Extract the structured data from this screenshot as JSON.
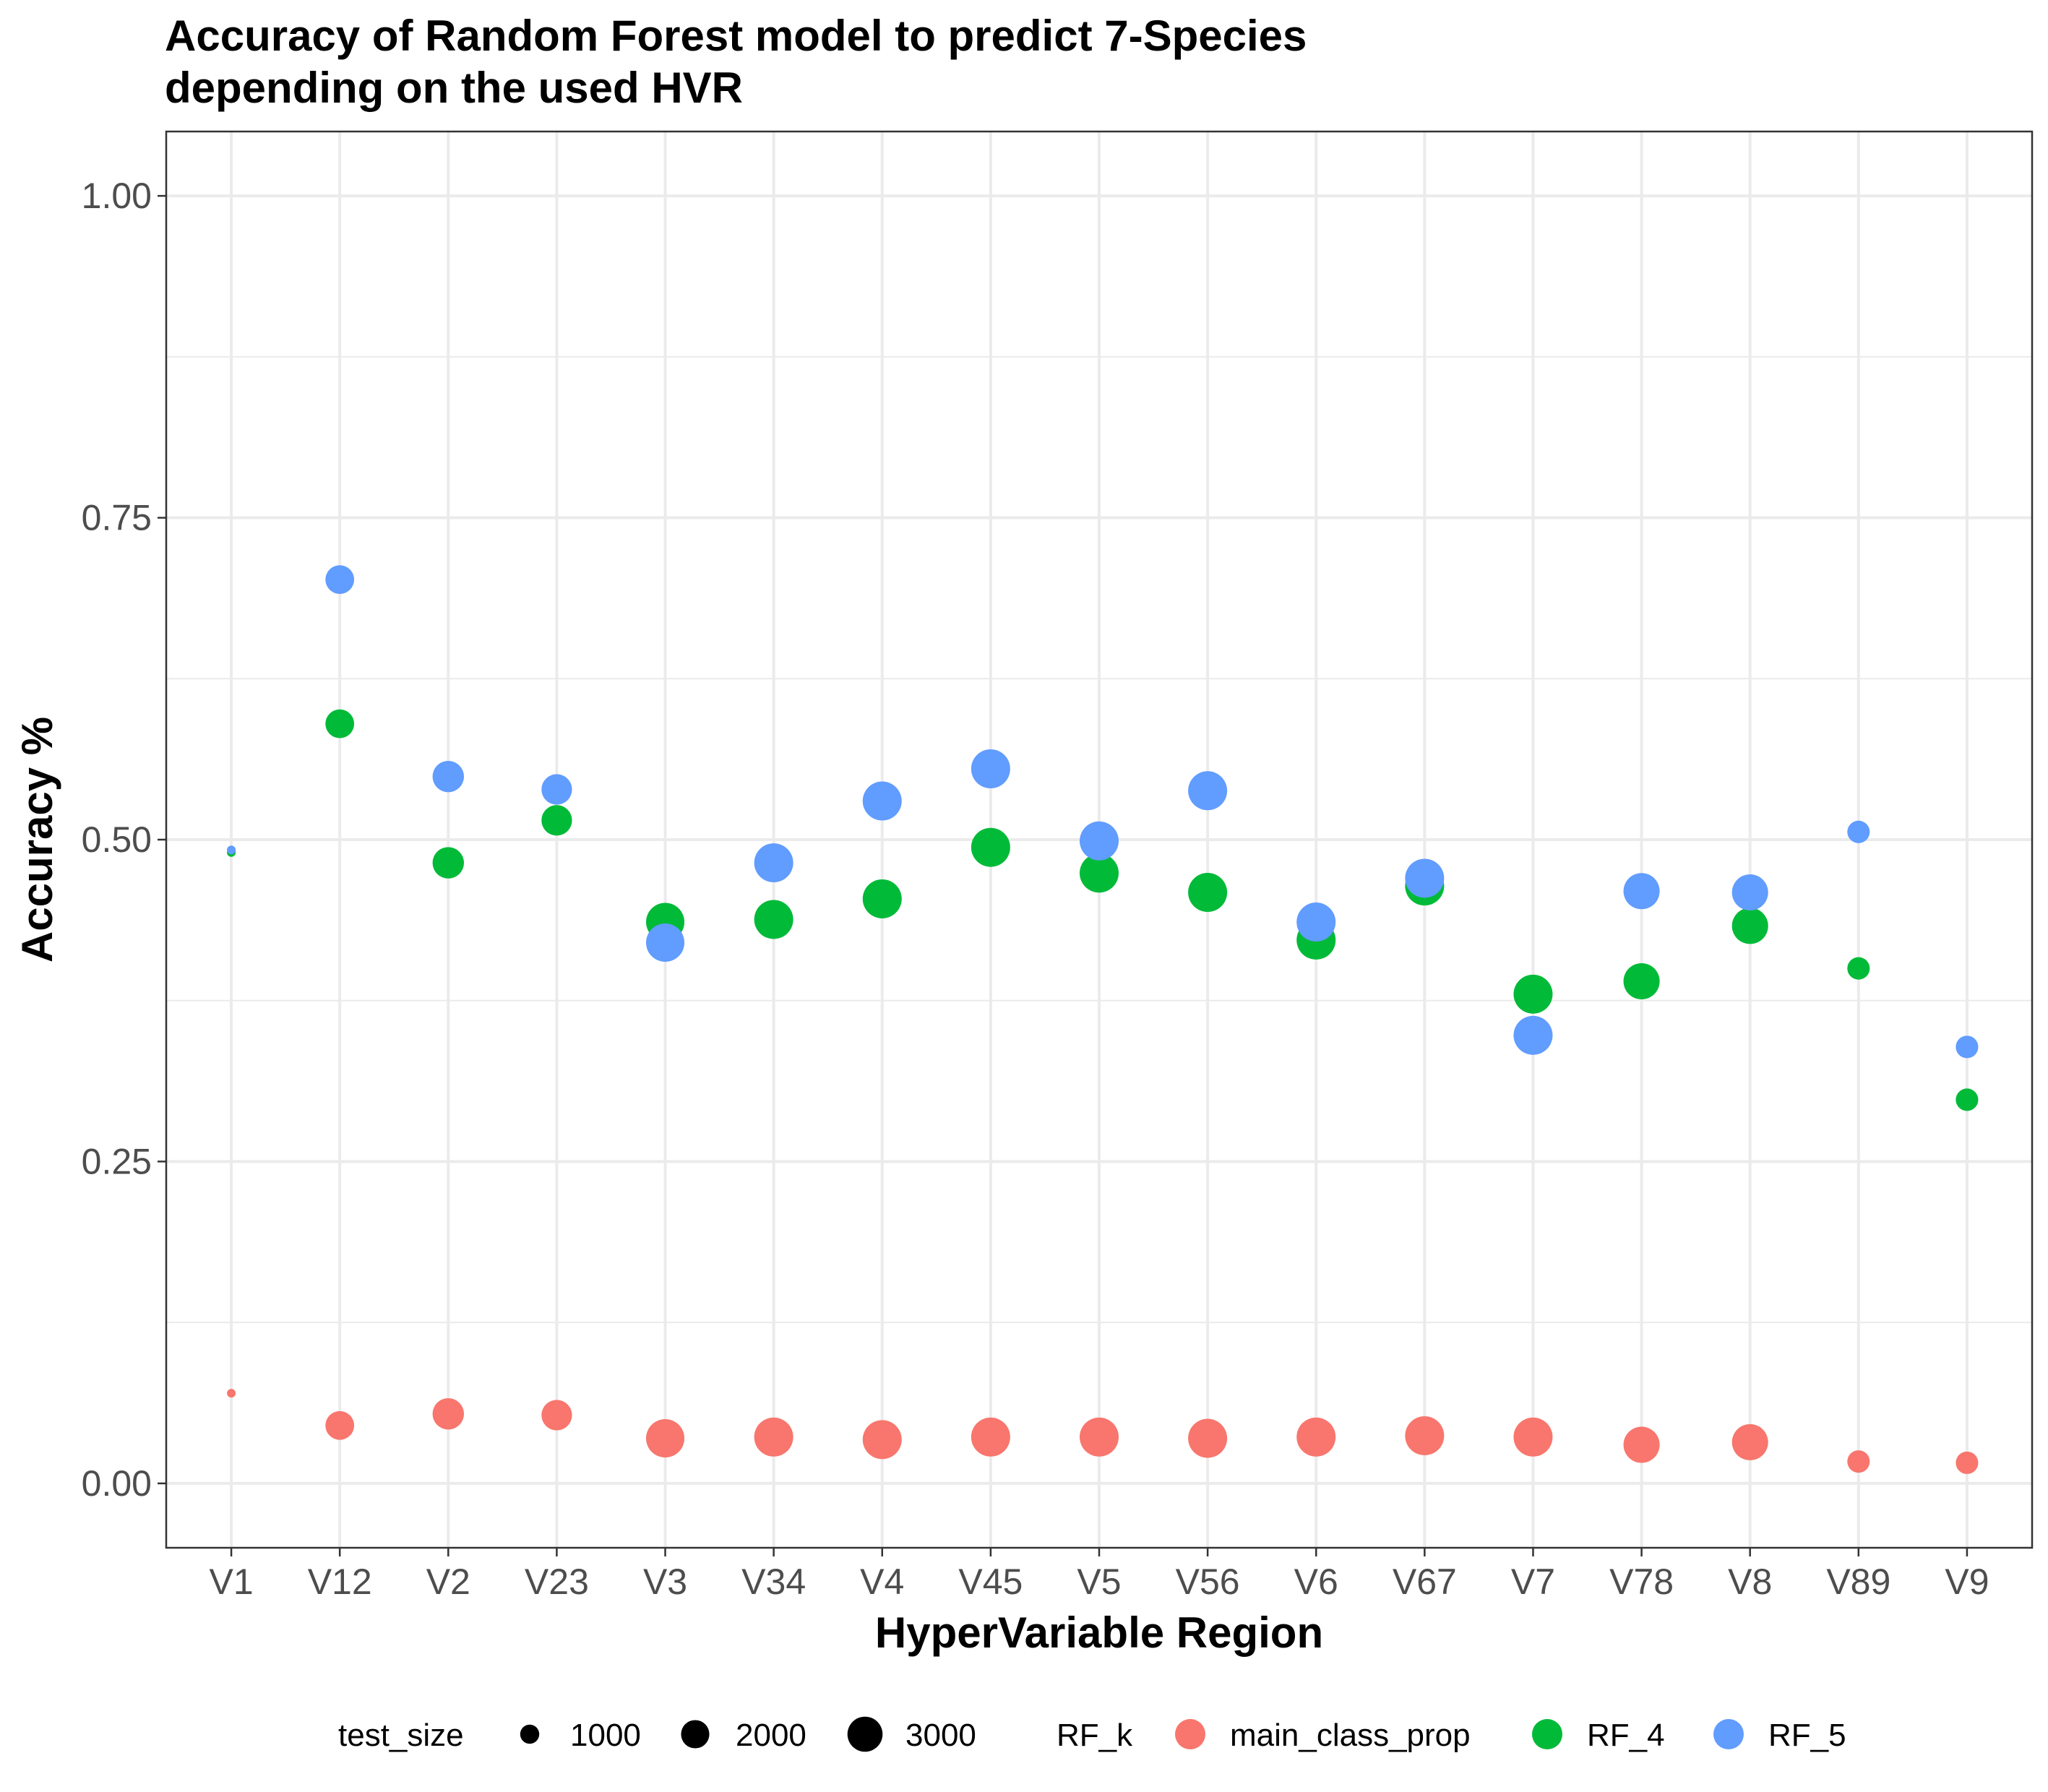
{
  "chart_data": {
    "type": "scatter",
    "title": "Accuracy of Random Forest model to predict 7-Species",
    "subtitle": "depending on the used HVR",
    "xlabel": "HyperVariable Region",
    "ylabel": "Accuracy %",
    "ylim": [
      -0.05,
      1.05
    ],
    "yticks": [
      0.0,
      0.25,
      0.5,
      0.75,
      1.0
    ],
    "ytick_labels": [
      "0.00",
      "0.25",
      "0.50",
      "0.75",
      "1.00"
    ],
    "grid": true,
    "legend_position": "bottom",
    "categories": [
      "V1",
      "V12",
      "V2",
      "V23",
      "V3",
      "V34",
      "V4",
      "V45",
      "V5",
      "V56",
      "V6",
      "V67",
      "V7",
      "V78",
      "V8",
      "V89",
      "V9"
    ],
    "series": [
      {
        "name": "main_class_prop",
        "color": "#F8766D",
        "values": [
          0.07,
          0.045,
          0.054,
          0.053,
          0.035,
          0.036,
          0.034,
          0.036,
          0.036,
          0.035,
          0.036,
          0.037,
          0.036,
          0.03,
          0.032,
          0.017,
          0.016
        ],
        "test_size": [
          300,
          1700,
          2000,
          1900,
          2900,
          3000,
          3000,
          3000,
          3000,
          3000,
          3000,
          3000,
          3000,
          2600,
          2600,
          1100,
          1100
        ]
      },
      {
        "name": "RF_4",
        "color": "#00BA38",
        "values": [
          0.49,
          0.59,
          0.482,
          0.515,
          0.436,
          0.438,
          0.454,
          0.494,
          0.474,
          0.459,
          0.422,
          0.464,
          0.38,
          0.39,
          0.433,
          0.4,
          0.298
        ],
        "test_size": [
          300,
          1700,
          2000,
          1900,
          2900,
          3000,
          3000,
          3000,
          3000,
          3000,
          3000,
          3000,
          3000,
          2600,
          2600,
          1100,
          1100
        ]
      },
      {
        "name": "RF_5",
        "color": "#619CFF",
        "values": [
          0.492,
          0.702,
          0.549,
          0.539,
          0.42,
          0.482,
          0.53,
          0.555,
          0.499,
          0.538,
          0.436,
          0.47,
          0.348,
          0.46,
          0.459,
          0.506,
          0.339
        ],
        "test_size": [
          300,
          1700,
          2000,
          1900,
          2900,
          3000,
          3000,
          3000,
          3000,
          3000,
          3000,
          3000,
          3000,
          2600,
          2600,
          1100,
          1100
        ]
      }
    ],
    "legend": {
      "size_title": "test_size",
      "size_entries": [
        {
          "label": "1000",
          "value": 1000
        },
        {
          "label": "2000",
          "value": 2000
        },
        {
          "label": "3000",
          "value": 3000
        }
      ],
      "color_title": "RF_k",
      "color_entries": [
        {
          "label": "main_class_prop",
          "color": "#F8766D"
        },
        {
          "label": "RF_4",
          "color": "#00BA38"
        },
        {
          "label": "RF_5",
          "color": "#619CFF"
        }
      ]
    }
  }
}
